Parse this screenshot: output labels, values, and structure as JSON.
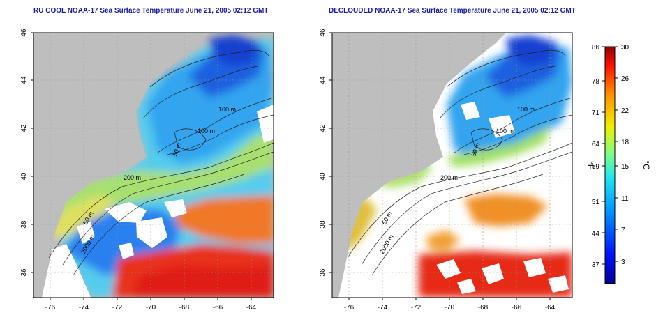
{
  "panels": [
    {
      "title": "RU COOL NOAA-17 Sea Surface Temperature June 21, 2005 02:12 GMT",
      "x_ticks": [
        "-76",
        "-74",
        "-72",
        "-70",
        "-68",
        "-66",
        "-64"
      ],
      "y_ticks": [
        "36",
        "38",
        "40",
        "42",
        "44",
        "46"
      ],
      "contour_labels": [
        "100 m",
        "100 m",
        "50 m",
        "200 m",
        "50 m",
        "2000 m"
      ]
    },
    {
      "title": "DECLOUDED NOAA-17 Sea Surface Temperature June 21, 2005 02:12 GMT",
      "x_ticks": [
        "-76",
        "-74",
        "-72",
        "-70",
        "-68",
        "-66",
        "-64"
      ],
      "y_ticks": [
        "36",
        "38",
        "40",
        "42",
        "44",
        "46"
      ],
      "contour_labels": [
        "100 m",
        "100 m",
        "50 m",
        "200 m",
        "50 m",
        "2000 m"
      ]
    }
  ],
  "colorbar": {
    "fahrenheit_unit": "°F",
    "celsius_unit": "°C",
    "fahrenheit_ticks": [
      "86",
      "78",
      "71",
      "64",
      "59",
      "51",
      "44",
      "37"
    ],
    "celsius_ticks": [
      "30",
      "26",
      "22",
      "18",
      "15",
      "11",
      "7",
      "3"
    ]
  },
  "colors": {
    "land": "#bebebe",
    "cloud": "#ffffff",
    "cold": "#1e64e6",
    "cool": "#33aaf0",
    "mild": "#52d0e6",
    "warm": "#f0a030",
    "hot": "#e62a14",
    "title": "#1a1aa8"
  }
}
